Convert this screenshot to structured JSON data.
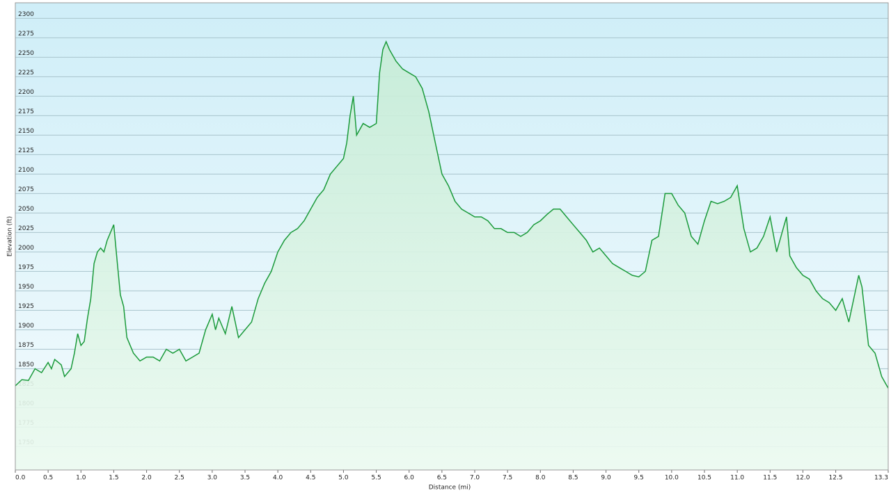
{
  "chart_data": {
    "type": "area",
    "xlabel": "Distance  (mi)",
    "ylabel": "Elevation (ft)",
    "xlim": [
      0,
      13.3
    ],
    "ylim": [
      1720,
      2320
    ],
    "xticks": [
      {
        "value": 0,
        "label": "0.0"
      },
      0.5,
      {
        "value": 1,
        "label": "1.0"
      },
      1.5,
      {
        "value": 2,
        "label": "2.0"
      },
      2.5,
      {
        "value": 3,
        "label": "3.0"
      },
      3.5,
      {
        "value": 4,
        "label": "4.0"
      },
      4.5,
      {
        "value": 5,
        "label": "5.0"
      },
      5.5,
      {
        "value": 6,
        "label": "6.0"
      },
      6.5,
      {
        "value": 7,
        "label": "7.0"
      },
      7.5,
      {
        "value": 8,
        "label": "8.0"
      },
      8.5,
      {
        "value": 9,
        "label": "9.0"
      },
      9.5,
      {
        "value": 10,
        "label": "10.0"
      },
      10.5,
      {
        "value": 11,
        "label": "11.0"
      },
      11.5,
      {
        "value": 12,
        "label": "12.0"
      },
      12.5,
      13.3
    ],
    "yticks": [
      1750,
      1775,
      1800,
      1825,
      1850,
      1875,
      1900,
      1925,
      1950,
      1975,
      2000,
      2025,
      2050,
      2075,
      2100,
      2125,
      2150,
      2175,
      2200,
      2225,
      2250,
      2275,
      2300
    ],
    "grid": true,
    "x": [
      0.0,
      0.1,
      0.2,
      0.3,
      0.4,
      0.5,
      0.55,
      0.6,
      0.7,
      0.75,
      0.8,
      0.85,
      0.9,
      0.95,
      1.0,
      1.05,
      1.1,
      1.15,
      1.2,
      1.25,
      1.3,
      1.35,
      1.4,
      1.45,
      1.5,
      1.55,
      1.6,
      1.65,
      1.7,
      1.75,
      1.8,
      1.9,
      2.0,
      2.1,
      2.2,
      2.3,
      2.4,
      2.5,
      2.6,
      2.7,
      2.8,
      2.9,
      3.0,
      3.05,
      3.1,
      3.2,
      3.3,
      3.35,
      3.4,
      3.5,
      3.6,
      3.7,
      3.8,
      3.9,
      4.0,
      4.1,
      4.2,
      4.3,
      4.4,
      4.5,
      4.6,
      4.7,
      4.8,
      4.9,
      5.0,
      5.05,
      5.1,
      5.15,
      5.2,
      5.3,
      5.4,
      5.5,
      5.55,
      5.6,
      5.65,
      5.7,
      5.8,
      5.9,
      6.0,
      6.1,
      6.2,
      6.3,
      6.4,
      6.5,
      6.6,
      6.7,
      6.8,
      6.9,
      7.0,
      7.1,
      7.2,
      7.3,
      7.4,
      7.5,
      7.6,
      7.7,
      7.8,
      7.9,
      8.0,
      8.1,
      8.2,
      8.3,
      8.4,
      8.5,
      8.6,
      8.7,
      8.8,
      8.9,
      9.0,
      9.1,
      9.2,
      9.3,
      9.4,
      9.5,
      9.6,
      9.7,
      9.8,
      9.9,
      10.0,
      10.1,
      10.2,
      10.3,
      10.4,
      10.5,
      10.6,
      10.7,
      10.8,
      10.9,
      11.0,
      11.1,
      11.2,
      11.3,
      11.4,
      11.5,
      11.6,
      11.7,
      11.75,
      11.8,
      11.9,
      12.0,
      12.1,
      12.2,
      12.3,
      12.4,
      12.5,
      12.6,
      12.7,
      12.8,
      12.85,
      12.9,
      13.0,
      13.1,
      13.2,
      13.3
    ],
    "series": [
      {
        "name": "Elevation",
        "color": "#1a9a3a",
        "values": [
          1828,
          1836,
          1835,
          1850,
          1845,
          1858,
          1850,
          1862,
          1855,
          1840,
          1845,
          1850,
          1870,
          1895,
          1880,
          1885,
          1915,
          1940,
          1985,
          2000,
          2005,
          2000,
          2015,
          2025,
          2035,
          1990,
          1945,
          1930,
          1890,
          1880,
          1870,
          1860,
          1865,
          1865,
          1860,
          1875,
          1870,
          1875,
          1860,
          1865,
          1870,
          1900,
          1920,
          1900,
          1915,
          1895,
          1930,
          1910,
          1890,
          1900,
          1910,
          1940,
          1960,
          1975,
          2000,
          2015,
          2025,
          2030,
          2040,
          2055,
          2070,
          2080,
          2100,
          2110,
          2120,
          2140,
          2175,
          2200,
          2150,
          2165,
          2160,
          2165,
          2230,
          2260,
          2270,
          2260,
          2245,
          2235,
          2230,
          2225,
          2210,
          2180,
          2140,
          2100,
          2085,
          2065,
          2055,
          2050,
          2045,
          2045,
          2040,
          2030,
          2030,
          2025,
          2025,
          2020,
          2025,
          2035,
          2040,
          2048,
          2055,
          2055,
          2045,
          2035,
          2025,
          2015,
          2000,
          2005,
          1995,
          1985,
          1980,
          1975,
          1970,
          1968,
          1975,
          2015,
          2020,
          2075,
          2075,
          2060,
          2050,
          2020,
          2010,
          2040,
          2065,
          2062,
          2065,
          2070,
          2085,
          2030,
          2000,
          2005,
          2020,
          2045,
          2000,
          2030,
          2045,
          1995,
          1980,
          1970,
          1965,
          1950,
          1940,
          1935,
          1925,
          1940,
          1910,
          1950,
          1970,
          1955,
          1880,
          1870,
          1840,
          1825
        ]
      }
    ]
  }
}
